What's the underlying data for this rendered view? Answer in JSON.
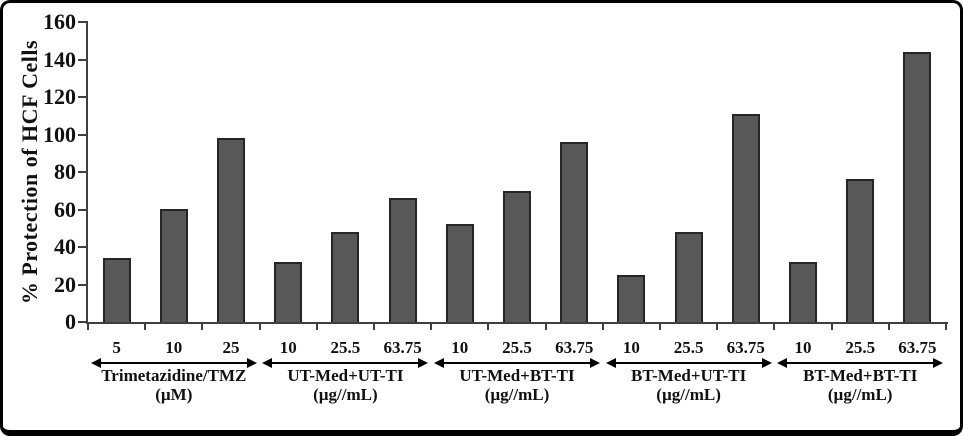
{
  "figure": {
    "bar_fill_color": "#585858",
    "bar_border_color": "#262626",
    "axis_color": "#3f3f3f",
    "frame_border_color": "#000000",
    "background_color": "#ffffff"
  },
  "chart_data": {
    "type": "bar",
    "title": "",
    "xlabel": "",
    "ylabel": "% Protection of HCF Cells",
    "ylim": [
      0,
      160
    ],
    "ytick_interval": 20,
    "ytick_labels": [
      "160",
      "140",
      "120",
      "100",
      "80",
      "60",
      "40",
      "20",
      "0"
    ],
    "grid": false,
    "legend_position": "none",
    "groups": [
      {
        "name": "Trimetazidine/TMZ",
        "unit": "(µM)",
        "doses": [
          "5",
          "10",
          "25"
        ],
        "values": [
          34,
          60,
          98
        ]
      },
      {
        "name": "UT-Med+UT-TI",
        "unit": "(µg//mL)",
        "doses": [
          "10",
          "25.5",
          "63.75"
        ],
        "values": [
          32,
          48,
          66
        ]
      },
      {
        "name": "UT-Med+BT-TI",
        "unit": "(µg//mL)",
        "doses": [
          "10",
          "25.5",
          "63.75"
        ],
        "values": [
          52,
          70,
          96
        ]
      },
      {
        "name": "BT-Med+UT-TI",
        "unit": "(µg//mL)",
        "doses": [
          "10",
          "25.5",
          "63.75"
        ],
        "values": [
          25,
          48,
          111
        ]
      },
      {
        "name": "BT-Med+BT-TI",
        "unit": "(µg//mL)",
        "doses": [
          "10",
          "25.5",
          "63.75"
        ],
        "values": [
          32,
          76,
          144
        ]
      }
    ]
  }
}
